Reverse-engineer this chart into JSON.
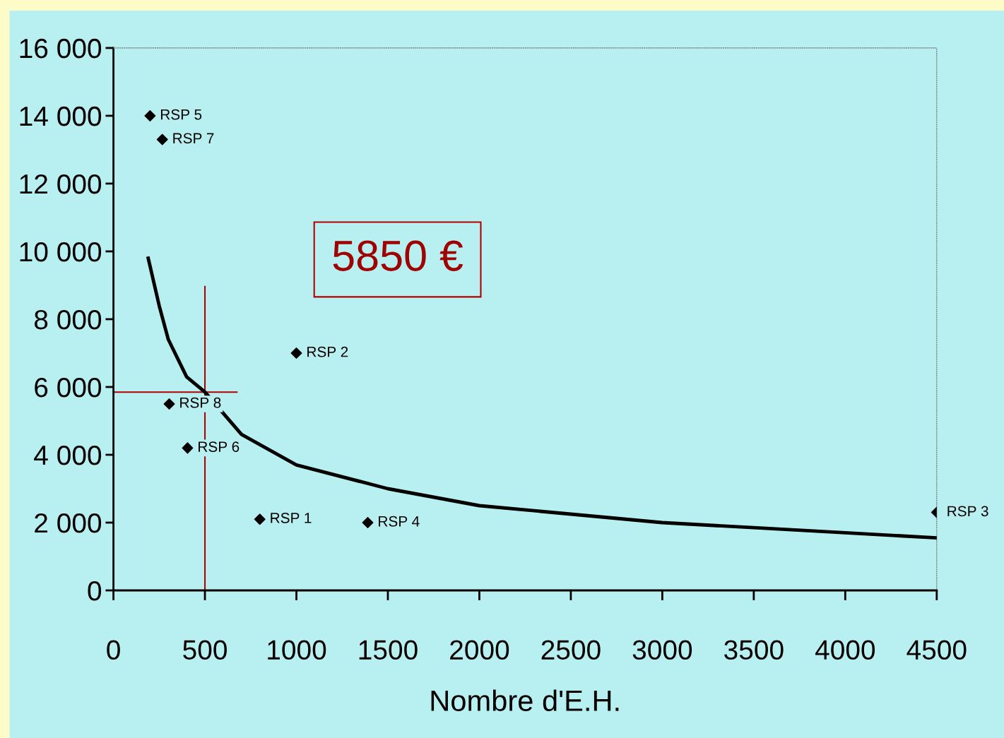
{
  "chart_data": {
    "type": "scatter",
    "xlabel": "Nombre d'E.H.",
    "x": [
      200,
      267,
      305,
      405,
      1000,
      800,
      1390,
      4500
    ],
    "series": [
      {
        "color": "#000000",
        "marker": "diamond",
        "values": [
          14000,
          13300,
          5500,
          4200,
          7000,
          2100,
          2000,
          2300
        ]
      },
      {
        "type": "line",
        "color": "#000000",
        "marker": "none",
        "line_style": "solid",
        "x": [
          190,
          250,
          300,
          400,
          500,
          700,
          1000,
          1500,
          2000,
          2500,
          3000,
          3500,
          4000,
          4500
        ],
        "values": [
          9800,
          8400,
          7400,
          6300,
          5850,
          4600,
          3700,
          3000,
          2500,
          2250,
          2000,
          1850,
          1700,
          1550
        ]
      }
    ],
    "annotations": [
      {
        "text": "RSP 5",
        "x": 200,
        "y": 14000
      },
      {
        "text": "RSP 7",
        "x": 267,
        "y": 13300
      },
      {
        "text": "RSP 8",
        "x": 305,
        "y": 5500
      },
      {
        "text": "RSP 6",
        "x": 405,
        "y": 4200
      },
      {
        "text": "RSP 2",
        "x": 1000,
        "y": 7000
      },
      {
        "text": "RSP 1",
        "x": 800,
        "y": 2100
      },
      {
        "text": "RSP 4",
        "x": 1390,
        "y": 2000
      },
      {
        "text": "RSP 3",
        "x": 4500,
        "y": 2300
      },
      "5850 €"
    ],
    "ref_lines": [
      {
        "axis": "x",
        "value": 500,
        "color": "#b00000"
      },
      {
        "axis": "y",
        "value": 5850,
        "color": "#b00000"
      }
    ],
    "xlim": [
      0,
      4500
    ],
    "ylim": [
      0,
      16000
    ],
    "xticks": [
      0,
      500,
      1000,
      1500,
      2000,
      2500,
      3000,
      3500,
      4000,
      4500
    ],
    "yticks": [
      {
        "value": 0,
        "label": "0"
      },
      {
        "value": 2000,
        "label": "2 000"
      },
      {
        "value": 4000,
        "label": "4 000"
      },
      {
        "value": 6000,
        "label": "6 000"
      },
      {
        "value": 8000,
        "label": "8 000"
      },
      {
        "value": 10000,
        "label": "10 000"
      },
      {
        "value": 12000,
        "label": "12 000"
      },
      {
        "value": 14000,
        "label": "14 000"
      },
      {
        "value": 16000,
        "label": "16 000"
      }
    ],
    "grid": false,
    "legend": false
  }
}
